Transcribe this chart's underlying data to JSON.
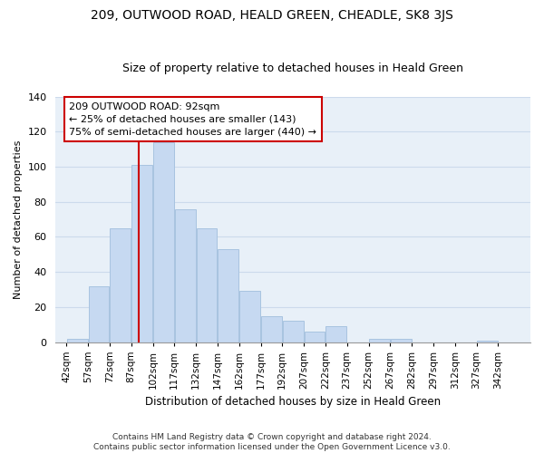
{
  "title": "209, OUTWOOD ROAD, HEALD GREEN, CHEADLE, SK8 3JS",
  "subtitle": "Size of property relative to detached houses in Heald Green",
  "xlabel": "Distribution of detached houses by size in Heald Green",
  "ylabel": "Number of detached properties",
  "bin_edges": [
    42,
    57,
    72,
    87,
    102,
    117,
    132,
    147,
    162,
    177,
    192,
    207,
    222,
    237,
    252,
    267,
    282,
    297,
    312,
    327,
    342
  ],
  "bar_heights": [
    2,
    32,
    65,
    101,
    114,
    76,
    65,
    53,
    29,
    15,
    12,
    6,
    9,
    0,
    2,
    2,
    0,
    0,
    0,
    1
  ],
  "bar_color": "#c6d9f1",
  "bar_edge_color": "#a8c4e0",
  "vline_x": 92,
  "vline_color": "#cc0000",
  "annotation_title": "209 OUTWOOD ROAD: 92sqm",
  "annotation_line1": "← 25% of detached houses are smaller (143)",
  "annotation_line2": "75% of semi-detached houses are larger (440) →",
  "annotation_box_facecolor": "#ffffff",
  "annotation_box_edgecolor": "#cc0000",
  "ylim": [
    0,
    140
  ],
  "yticks": [
    0,
    20,
    40,
    60,
    80,
    100,
    120,
    140
  ],
  "tick_labels": [
    "42sqm",
    "57sqm",
    "72sqm",
    "87sqm",
    "102sqm",
    "117sqm",
    "132sqm",
    "147sqm",
    "162sqm",
    "177sqm",
    "192sqm",
    "207sqm",
    "222sqm",
    "237sqm",
    "252sqm",
    "267sqm",
    "282sqm",
    "297sqm",
    "312sqm",
    "327sqm",
    "342sqm"
  ],
  "footer_line1": "Contains HM Land Registry data © Crown copyright and database right 2024.",
  "footer_line2": "Contains public sector information licensed under the Open Government Licence v3.0.",
  "grid_color": "#ccdaec",
  "background_color": "#e8f0f8",
  "title_fontsize": 10,
  "subtitle_fontsize": 9,
  "xlabel_fontsize": 8.5,
  "ylabel_fontsize": 8,
  "tick_fontsize": 7.5,
  "footer_fontsize": 6.5
}
